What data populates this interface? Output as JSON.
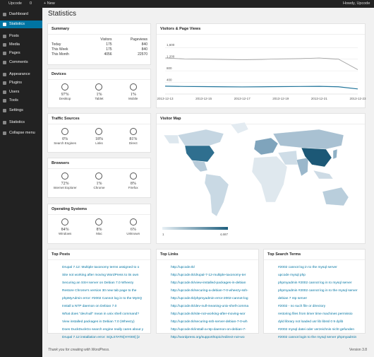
{
  "admin_bar": {
    "site": "Upcode",
    "comments": "0",
    "new": "+ New",
    "greeting": "Howdy, Upcode"
  },
  "menu": {
    "items": [
      "Dashboard",
      "Statistics",
      "Posts",
      "Media",
      "Pages",
      "Comments",
      "Appearance",
      "Plugins",
      "Users",
      "Tools",
      "Settings",
      "Statistics",
      "Collapse menu"
    ],
    "active": 1
  },
  "page_title": "Statistics",
  "summary": {
    "title": "Summary",
    "columns": [
      "Visitors",
      "Pageviews"
    ],
    "rows": [
      {
        "label": "Today",
        "values": [
          "175",
          "840"
        ]
      },
      {
        "label": "This Week",
        "values": [
          "175",
          "840"
        ]
      },
      {
        "label": "This Month",
        "values": [
          "4056",
          "22570"
        ]
      }
    ]
  },
  "devices": {
    "title": "Devices",
    "items": [
      {
        "value": "97%",
        "label": "Desktop"
      },
      {
        "value": "1%",
        "label": "Tablet"
      },
      {
        "value": "1%",
        "label": "Mobile"
      }
    ]
  },
  "traffic": {
    "title": "Traffic Sources",
    "items": [
      {
        "value": "0%",
        "label": "Search Engines"
      },
      {
        "value": "18%",
        "label": "Links"
      },
      {
        "value": "81%",
        "label": "Direct"
      }
    ]
  },
  "browsers": {
    "title": "Browsers",
    "items": [
      {
        "value": "72%",
        "label": "Internet Explorer"
      },
      {
        "value": "1%",
        "label": "Chrome"
      },
      {
        "value": "8%",
        "label": "Firefox"
      }
    ]
  },
  "os": {
    "title": "Operating Systems",
    "items": [
      {
        "value": "84%",
        "label": "Windows"
      },
      {
        "value": "8%",
        "label": "Mac"
      },
      {
        "value": "6%",
        "label": "Unknown"
      }
    ]
  },
  "chart_data": {
    "type": "line",
    "title": "Visitors & Page Views",
    "categories": [
      "2013-12-13",
      null,
      "2013-12-15",
      null,
      "2013-12-17",
      null,
      "2013-12-19",
      null,
      "2013-12-21",
      null,
      "2013-12-23"
    ],
    "series": [
      {
        "color": "#999999",
        "values": [
          1240,
          1210,
          1200,
          1190,
          1180,
          1190,
          1210,
          1220,
          1240,
          1200,
          840
        ]
      },
      {
        "color": "#21759b",
        "values": [
          270,
          260,
          255,
          250,
          245,
          250,
          255,
          260,
          265,
          250,
          175
        ]
      }
    ],
    "ylim": [
      0,
      1800
    ],
    "yticks": [
      {
        "value": 400,
        "label": "400"
      },
      {
        "value": 800,
        "label": "800"
      },
      {
        "value": 1200,
        "label": "1,200"
      },
      {
        "value": 1600,
        "label": "1,600"
      }
    ],
    "grid": true
  },
  "visitor_map": {
    "title": "Visitor Map",
    "scale_min": "1",
    "scale_max": "4,687"
  },
  "top_posts": {
    "title": "Top Posts",
    "items": [
      "Drupal 7.12: Multiple taxonomy terms assigned to o",
      "Site not working after moving WordPress to its own",
      "Securing an SSH server on Debian 7.0 Wheezy",
      "Restore Chrome's version 30 new tab page to the",
      "phpMyAdmin error: #2002 Cannot log in to the MySQ",
      "Install a NTP daemon on Debian 7.0",
      "What does \"dev/null\" mean in unix shell command?",
      "View installed packages in Debian 7.0 (Wheezy)",
      "Does DuckDuckGo search engine really cares about y",
      "Drupal 7.12 installation error: SQLSTATE[HY000] [2"
    ]
  },
  "top_links": {
    "title": "Top Links",
    "items": [
      "http://upcode.tk/",
      "http://upcode.tk/drupal-7-12-multiple-taxonomy-ter",
      "http://upcode.tk/view-installed-packages-in-debian",
      "http://upcode.tk/securing-a-debian-7-0-wheezy-ssh-",
      "http://upcode.tk/phpmyadmin-error-2002-cannot-log",
      "http://upcode.tk/dev-null-meaning-unix-shell-comma",
      "http://upcode.tk/site-not-working-after-moving-wor",
      "http://upcode.tk/securing-ssh-server-debian-7-0-wh",
      "http://upcode.tk/install-a-ntp-daemon-on-debian-7-",
      "http://wordpress.org/support/topic/redirect-not-wo"
    ]
  },
  "top_search": {
    "title": "Top Search Terms",
    "items": [
      "#2002 cannot log in to the mysql server",
      "upcode mysql php",
      "phpmyadmin #2002 cannot log in to mysql server",
      "phpmyadmin #2002 cannot log in to the mysql server",
      "debian 7 ntp server",
      "#2002 - no such file or directory",
      "restoring files from timer time machines permissio",
      "dyld library not loaded usr lib libssl 0 9 dylib",
      "#2002 mysql datei oder verzeichnis nicht gefunden",
      "#2002 cannot login to the mysql server phpmyadmin"
    ]
  },
  "footer": {
    "thanks": "Thank you for creating with WordPress.",
    "version": "Version 3.8"
  }
}
